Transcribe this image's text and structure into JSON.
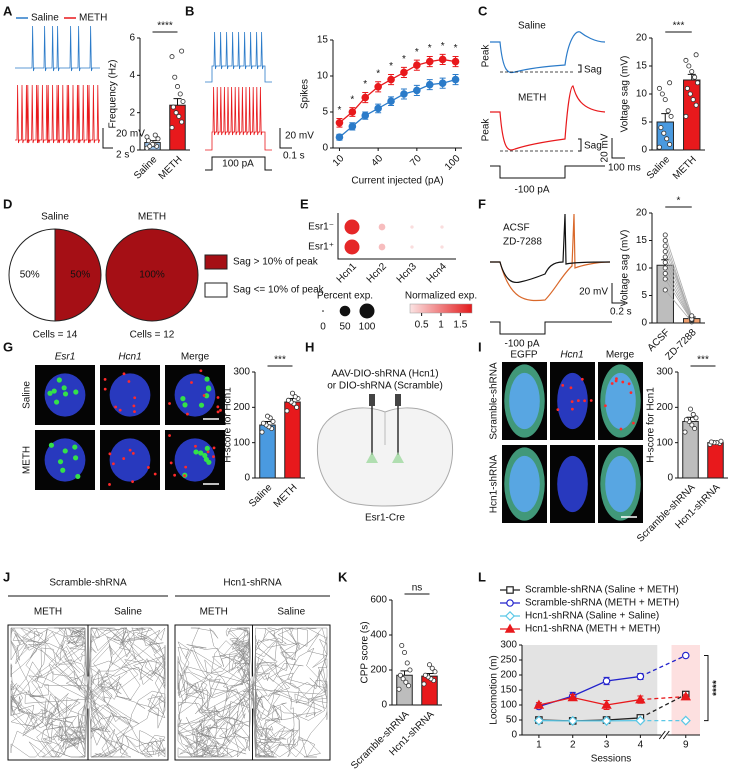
{
  "figure": {
    "panel_labels": [
      "A",
      "B",
      "C",
      "D",
      "E",
      "F",
      "G",
      "H",
      "I",
      "J",
      "K",
      "L"
    ],
    "A": {
      "scale_v": "20 mV",
      "scale_t": "2 s"
    },
    "B": {
      "scale_v": "20 mV",
      "scale_t": "0.1 s",
      "step": "100 pA"
    },
    "C": {
      "saline": "Saline",
      "meth": "METH",
      "peak1": "Peak",
      "sag1": "Sag",
      "peak2": "Peak",
      "sag2": "Sag",
      "scale_v": "20 mV",
      "scale_t": "100 ms",
      "step": "-100 pA"
    },
    "F": {
      "acsf": "ACSF",
      "zd": "ZD-7288",
      "scale_v": "20 mV",
      "scale_t": "0.2 s",
      "step": "-100 pA"
    },
    "G": {
      "cols": [
        "Esr1",
        "Hcn1",
        "Merge"
      ],
      "rows": [
        "Saline",
        "METH"
      ]
    },
    "H": {
      "line1": "AAV-DIO-shRNA (Hcn1)",
      "line2": "or DIO-shRNA (Scramble)",
      "mouse": "Esr1-Cre"
    },
    "I": {
      "cols": [
        "EGFP",
        "Hcn1",
        "Merge"
      ],
      "rows": [
        "Scramble-shRNA",
        "Hcn1-shRNA"
      ]
    },
    "J": {
      "groups": [
        "Scramble-shRNA",
        "Hcn1-shRNA"
      ],
      "sides": [
        "METH",
        "Saline",
        "METH",
        "Saline"
      ]
    }
  },
  "chart_data": [
    {
      "type": "bar",
      "ylabel": "Frequency (Hz)",
      "categories": [
        "Saline",
        "METH"
      ],
      "values": [
        0.4,
        2.4
      ],
      "errors": [
        0.1,
        0.35
      ],
      "colors": [
        "#9cc3ea",
        "#e8191c"
      ],
      "points": [
        [
          0.1,
          0.2,
          0.3,
          0.4,
          0.5,
          0.6,
          0.8,
          0.3,
          0.2,
          0.7
        ],
        [
          1.2,
          1.5,
          1.8,
          2.0,
          2.3,
          2.6,
          3.0,
          3.4,
          3.9,
          5.0,
          5.3
        ]
      ],
      "ylim": [
        0,
        6
      ],
      "yticks": [
        0,
        2,
        4,
        6
      ],
      "annotation": "****"
    },
    {
      "type": "line",
      "xlabel": "Current injected (pA)",
      "ylabel": "Spikes",
      "x": [
        10,
        20,
        30,
        40,
        50,
        60,
        70,
        80,
        90,
        100
      ],
      "xlim": [
        5,
        105
      ],
      "xticks": [
        10,
        40,
        70,
        100
      ],
      "ylim": [
        0,
        15
      ],
      "yticks": [
        0,
        5,
        10,
        15
      ],
      "series": [
        {
          "color": "#2b7bc9",
          "marker": "circle",
          "values": [
            1.5,
            3,
            4.5,
            5.5,
            6.5,
            7.5,
            8,
            8.8,
            9,
            9.5
          ],
          "errors": [
            0.4,
            0.5,
            0.5,
            0.6,
            0.6,
            0.7,
            0.7,
            0.7,
            0.7,
            0.7
          ]
        },
        {
          "color": "#e8191c",
          "marker": "circle",
          "values": [
            3.5,
            5,
            7,
            8.5,
            9.5,
            10.5,
            11.5,
            12,
            12.3,
            12
          ],
          "errors": [
            0.6,
            0.6,
            0.7,
            0.7,
            0.7,
            0.7,
            0.7,
            0.7,
            0.7,
            0.7
          ]
        }
      ],
      "annotations": [
        "*",
        "*",
        "*",
        "*",
        "*",
        "*",
        "*",
        "*",
        "*",
        "*"
      ]
    },
    {
      "type": "bar",
      "ylabel": "Voltage sag (mV)",
      "categories": [
        "Saline",
        "METH"
      ],
      "values": [
        5,
        12.5
      ],
      "errors": [
        1.5,
        1
      ],
      "colors": [
        "#4a9ae0",
        "#e8191c"
      ],
      "points": [
        [
          0.5,
          1,
          2,
          3,
          4,
          6,
          7,
          9,
          10,
          11,
          12
        ],
        [
          6,
          8,
          9,
          10,
          11,
          12,
          13,
          14,
          15,
          16,
          17
        ]
      ],
      "ylim": [
        0,
        20
      ],
      "yticks": [
        0,
        5,
        10,
        15,
        20
      ],
      "annotation": "***"
    },
    {
      "type": "pie",
      "title": "Saline",
      "categories": [
        "Sag > 10% of peak",
        "Sag <= 10% of peak"
      ],
      "values": [
        50,
        50
      ],
      "value_labels": [
        "50%",
        "50%"
      ],
      "colors": [
        "#a50f15",
        "#ffffff"
      ],
      "note": "Cells = 14",
      "legend": "right"
    },
    {
      "type": "pie",
      "title": "METH",
      "categories": [
        "Sag > 10% of peak"
      ],
      "values": [
        100
      ],
      "value_labels": [
        "100%"
      ],
      "colors": [
        "#a50f15"
      ],
      "note": "Cells = 12"
    },
    {
      "type": "dot",
      "categories": [
        "Hcn1",
        "Hcn2",
        "Hcn3",
        "Hcn4"
      ],
      "rows": [
        "Esr1⁻",
        "Esr1⁺"
      ],
      "percent_exp": [
        [
          100,
          20,
          5,
          5
        ],
        [
          100,
          20,
          5,
          5
        ]
      ],
      "normalized_exp": [
        [
          1.7,
          0.5,
          0.25,
          0.25
        ],
        [
          1.7,
          0.5,
          0.25,
          0.25
        ]
      ],
      "size_title": "Percent exp.",
      "size_ticks": [
        0,
        50,
        100
      ],
      "color_title": "Normalized exp.",
      "color_ticks": [
        0.5,
        1,
        1.5
      ],
      "clim": [
        0.2,
        1.8
      ],
      "colormap": [
        "#fbe3e3",
        "#e31a1c"
      ]
    },
    {
      "type": "bar",
      "ylabel": "Voltage sag (mV)",
      "categories": [
        "ACSF",
        "ZD-7288"
      ],
      "values": [
        10.5,
        0.8
      ],
      "errors": [
        1,
        0.3
      ],
      "colors": [
        "#bdbdbd",
        "#f0a070"
      ],
      "paired": true,
      "points": [
        [
          6,
          8,
          9,
          10,
          11,
          12,
          13,
          14,
          15,
          16
        ],
        [
          0.2,
          0.4,
          0.5,
          0.6,
          0.8,
          1,
          1.1,
          0.9,
          0.7,
          1.3
        ]
      ],
      "ylim": [
        0,
        20
      ],
      "yticks": [
        0,
        5,
        10,
        15,
        20
      ],
      "annotation": "*"
    },
    {
      "type": "bar",
      "ylabel": "H-score for Hcn1",
      "categories": [
        "Saline",
        "METH"
      ],
      "values": [
        150,
        215
      ],
      "errors": [
        10,
        10
      ],
      "colors": [
        "#4a9ae0",
        "#e8191c"
      ],
      "points": [
        [
          130,
          140,
          145,
          150,
          155,
          160,
          170,
          175
        ],
        [
          190,
          200,
          210,
          215,
          220,
          225,
          230,
          240
        ]
      ],
      "ylim": [
        0,
        300
      ],
      "yticks": [
        0,
        100,
        200,
        300
      ],
      "annotation": "***"
    },
    {
      "type": "bar",
      "ylabel": "H-score for Hcn1",
      "categories": [
        "Scramble-shRNA",
        "Hcn1-shRNA"
      ],
      "values": [
        160,
        100
      ],
      "errors": [
        12,
        3
      ],
      "colors": [
        "#bdbdbd",
        "#e8191c"
      ],
      "points": [
        [
          130,
          140,
          150,
          160,
          165,
          170,
          180,
          195
        ],
        [
          95,
          98,
          100,
          100,
          102,
          104
        ]
      ],
      "ylim": [
        0,
        300
      ],
      "yticks": [
        0,
        100,
        200,
        300
      ],
      "annotation": "***"
    },
    {
      "type": "bar",
      "ylabel": "CPP score (s)",
      "categories": [
        "Scramble-shRNA",
        "Hcn1-shRNA"
      ],
      "values": [
        170,
        165
      ],
      "errors": [
        25,
        15
      ],
      "colors": [
        "#bdbdbd",
        "#e8191c"
      ],
      "points": [
        [
          90,
          110,
          130,
          150,
          170,
          200,
          240,
          300,
          340
        ],
        [
          120,
          140,
          150,
          160,
          170,
          190,
          210,
          230
        ]
      ],
      "ylim": [
        0,
        600
      ],
      "yticks": [
        0,
        200,
        400,
        600
      ],
      "annotation": "ns"
    },
    {
      "type": "line",
      "xlabel": "Sessions",
      "ylabel": "Locomotion (m)",
      "x": [
        1,
        2,
        3,
        4,
        9
      ],
      "xlim": [
        0.5,
        9.5
      ],
      "x_break": [
        4.5,
        8.5
      ],
      "xticks": [
        1,
        2,
        3,
        4,
        9
      ],
      "ylim": [
        0,
        300
      ],
      "yticks": [
        0,
        50,
        100,
        150,
        200,
        250,
        300
      ],
      "hollow_markers": true,
      "shaded_regions": [
        {
          "x": [
            0.5,
            4.5
          ],
          "color": "#e3e3e3"
        },
        {
          "x": [
            8.5,
            9.5
          ],
          "color": "#fde0e0"
        }
      ],
      "series": [
        {
          "name": "Scramble-shRNA (Saline + METH)",
          "color": "#222222",
          "marker": "square",
          "values": [
            50,
            47,
            50,
            57,
            135
          ],
          "errors": [
            3,
            3,
            3,
            4,
            8
          ]
        },
        {
          "name": "Scramble-shRNA (METH + METH)",
          "color": "#2222cc",
          "marker": "circle",
          "values": [
            95,
            130,
            180,
            195,
            265
          ],
          "errors": [
            8,
            12,
            12,
            10,
            5
          ]
        },
        {
          "name": "Hcn1-shRNA (Saline + Saline)",
          "color": "#5bc8e6",
          "marker": "diamond",
          "values": [
            48,
            47,
            47,
            48,
            48
          ],
          "errors": [
            3,
            3,
            3,
            3,
            3
          ]
        },
        {
          "name": "Hcn1-shRNA (METH + METH)",
          "color": "#e8191c",
          "marker": "triangle",
          "values": [
            100,
            125,
            100,
            118,
            128
          ],
          "errors": [
            8,
            10,
            15,
            12,
            6
          ]
        }
      ],
      "annotation": "****"
    }
  ]
}
